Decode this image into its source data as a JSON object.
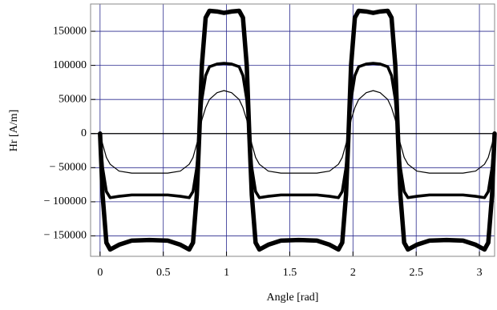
{
  "chart_data": {
    "type": "line",
    "x_label": "Angle [rad]",
    "y_label": "Hr [A/m]",
    "x": [
      0,
      0.02,
      0.05,
      0.08,
      0.15,
      0.25,
      0.39,
      0.535,
      0.635,
      0.705,
      0.735,
      0.765,
      0.785,
      0.805,
      0.835,
      0.865,
      0.925,
      0.98,
      1.04,
      1.1,
      1.13,
      1.16,
      1.18,
      1.2,
      1.23,
      1.26,
      1.33,
      1.43,
      1.57,
      1.715,
      1.815,
      1.885,
      1.915,
      1.945,
      1.965,
      1.985,
      2.015,
      2.045,
      2.105,
      2.16,
      2.215,
      2.275,
      2.305,
      2.335,
      2.355,
      2.375,
      2.405,
      2.435,
      2.505,
      2.605,
      2.74,
      2.87,
      2.97,
      3.04,
      3.07,
      3.1,
      3.12
    ],
    "series": [
      {
        "color": "#000000",
        "values": [
          0,
          -15000,
          -35000,
          -45000,
          -55000,
          -58000,
          -58000,
          -58000,
          -55000,
          -45000,
          -35000,
          -15000,
          0,
          20000,
          38000,
          50000,
          60000,
          63000,
          60000,
          50000,
          38000,
          20000,
          0,
          -15000,
          -35000,
          -45000,
          -55000,
          -58000,
          -58000,
          -58000,
          -55000,
          -45000,
          -35000,
          -15000,
          0,
          20000,
          38000,
          50000,
          60000,
          63000,
          60000,
          50000,
          38000,
          20000,
          0,
          -15000,
          -35000,
          -45000,
          -55000,
          -58000,
          -58000,
          -58000,
          -55000,
          -45000,
          -35000,
          -15000,
          0
        ]
      },
      {
        "color": "#000000",
        "values": [
          0,
          -50000,
          -85000,
          -94000,
          -92000,
          -90000,
          -90000,
          -90000,
          -92000,
          -94000,
          -85000,
          -50000,
          0,
          50000,
          85000,
          98000,
          102000,
          103000,
          102000,
          98000,
          85000,
          50000,
          0,
          -50000,
          -85000,
          -94000,
          -92000,
          -90000,
          -90000,
          -90000,
          -92000,
          -94000,
          -85000,
          -50000,
          0,
          50000,
          85000,
          98000,
          102000,
          103000,
          102000,
          98000,
          85000,
          50000,
          0,
          -50000,
          -85000,
          -94000,
          -92000,
          -90000,
          -90000,
          -90000,
          -92000,
          -94000,
          -85000,
          -50000,
          0
        ]
      },
      {
        "color": "#000000",
        "values": [
          0,
          -90000,
          -160000,
          -170000,
          -163000,
          -157000,
          -156000,
          -157000,
          -163000,
          -170000,
          -160000,
          -90000,
          0,
          100000,
          170000,
          180000,
          179000,
          177000,
          179000,
          180000,
          170000,
          100000,
          0,
          -90000,
          -160000,
          -170000,
          -163000,
          -157000,
          -156000,
          -157000,
          -163000,
          -170000,
          -160000,
          -90000,
          0,
          100000,
          170000,
          180000,
          179000,
          177000,
          179000,
          180000,
          170000,
          100000,
          0,
          -90000,
          -160000,
          -170000,
          -163000,
          -157000,
          -156000,
          -157000,
          -163000,
          -170000,
          -160000,
          -90000,
          0
        ]
      }
    ],
    "xlim": [
      -0.075,
      3.12
    ],
    "ylim": [
      -180000,
      190000
    ],
    "xticks": [
      0,
      0.5,
      1,
      1.5,
      2,
      2.5,
      3
    ],
    "yticks": [
      {
        "value": -150000,
        "label": "− 150000"
      },
      {
        "value": -100000,
        "label": "− 100000"
      },
      {
        "value": -50000,
        "label": "− 50000"
      },
      0,
      50000,
      100000,
      150000
    ],
    "grid": true
  }
}
